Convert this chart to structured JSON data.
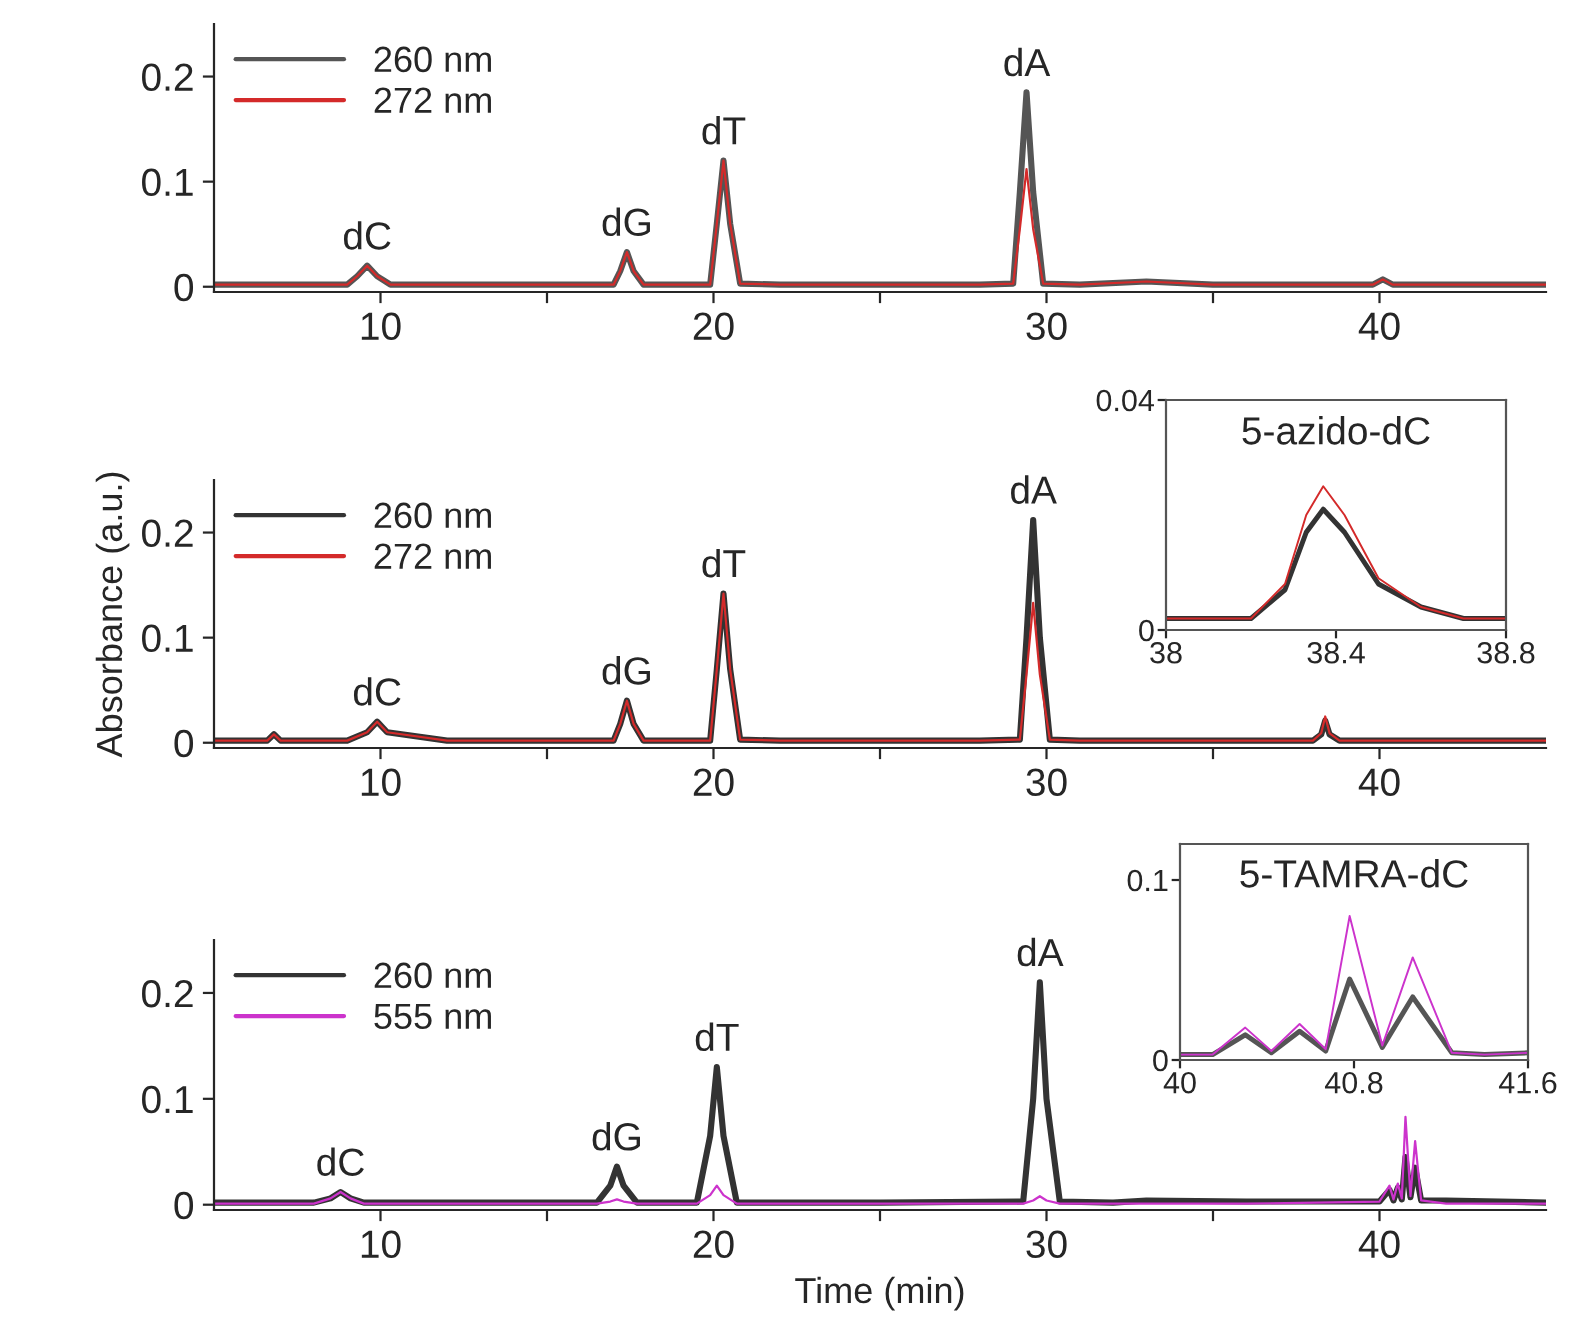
{
  "chart_data": [
    {
      "type": "line",
      "xlim": [
        5,
        45
      ],
      "ylim": [
        -0.005,
        0.25
      ],
      "xticks": [
        10,
        {
          "value": 15,
          "label": null
        },
        20,
        {
          "value": 25,
          "label": null
        },
        30,
        {
          "value": 35,
          "label": null
        },
        40
      ],
      "yticks": [
        0,
        0.1,
        0.2
      ],
      "legend": "top left",
      "grid": false,
      "annotations": [
        {
          "text": "dC",
          "x": 9.6,
          "y": 0.02
        },
        {
          "text": "dG",
          "x": 17.4,
          "y": 0.033
        },
        {
          "text": "dT",
          "x": 20.3,
          "y": 0.12
        },
        {
          "text": "dA",
          "x": 29.4,
          "y": 0.185
        }
      ],
      "series": [
        {
          "name": "260 nm",
          "color": "#555555",
          "x": [
            5,
            7,
            9,
            9.3,
            9.6,
            9.9,
            10.3,
            12,
            15,
            17,
            17.2,
            17.4,
            17.6,
            17.9,
            19,
            19.9,
            20.1,
            20.3,
            20.5,
            20.8,
            22,
            25,
            28,
            29.0,
            29.2,
            29.4,
            29.6,
            29.9,
            31,
            33,
            35,
            39.8,
            40.1,
            40.4,
            42,
            45
          ],
          "values": [
            0.002,
            0.002,
            0.002,
            0.01,
            0.02,
            0.01,
            0.002,
            0.002,
            0.002,
            0.002,
            0.015,
            0.033,
            0.015,
            0.002,
            0.002,
            0.002,
            0.06,
            0.12,
            0.06,
            0.003,
            0.002,
            0.002,
            0.002,
            0.003,
            0.09,
            0.185,
            0.09,
            0.003,
            0.002,
            0.005,
            0.002,
            0.002,
            0.007,
            0.002,
            0.002,
            0.002
          ]
        },
        {
          "name": "272 nm",
          "color": "#d42a2a",
          "x": [
            5,
            7,
            9,
            9.3,
            9.6,
            9.9,
            10.3,
            12,
            15,
            17,
            17.2,
            17.4,
            17.6,
            17.9,
            19,
            19.9,
            20.1,
            20.3,
            20.5,
            20.8,
            22,
            25,
            28,
            29.0,
            29.2,
            29.4,
            29.6,
            29.9,
            31,
            33,
            35,
            39.8,
            40.1,
            40.4,
            42,
            45
          ],
          "values": [
            0.002,
            0.002,
            0.002,
            0.01,
            0.02,
            0.01,
            0.002,
            0.002,
            0.002,
            0.002,
            0.015,
            0.033,
            0.015,
            0.002,
            0.002,
            0.002,
            0.06,
            0.12,
            0.06,
            0.003,
            0.002,
            0.002,
            0.002,
            0.003,
            0.055,
            0.112,
            0.055,
            0.003,
            0.002,
            0.005,
            0.002,
            0.002,
            0.007,
            0.002,
            0.002,
            0.002
          ]
        }
      ]
    },
    {
      "type": "line",
      "xlim": [
        5,
        45
      ],
      "ylim": [
        -0.005,
        0.25
      ],
      "xticks": [
        10,
        {
          "value": 15,
          "label": null
        },
        20,
        {
          "value": 25,
          "label": null
        },
        30,
        {
          "value": 35,
          "label": null
        },
        40
      ],
      "yticks": [
        0,
        0.1,
        0.2
      ],
      "legend": "top left",
      "grid": false,
      "ylabel": "Absorbance (a.u.)",
      "annotations": [
        {
          "text": "dC",
          "x": 9.9,
          "y": 0.02
        },
        {
          "text": "dG",
          "x": 17.4,
          "y": 0.04
        },
        {
          "text": "dT",
          "x": 20.3,
          "y": 0.142
        },
        {
          "text": "dA",
          "x": 29.6,
          "y": 0.212
        }
      ],
      "series": [
        {
          "name": "260 nm",
          "color": "#333333",
          "x": [
            5,
            6.6,
            6.8,
            7,
            9,
            9.6,
            9.9,
            10.2,
            12,
            15,
            17,
            17.2,
            17.4,
            17.6,
            17.9,
            19,
            19.9,
            20.1,
            20.3,
            20.5,
            20.8,
            22,
            25,
            28,
            29.2,
            29.4,
            29.6,
            29.8,
            30.1,
            31,
            35,
            38,
            38.25,
            38.37,
            38.5,
            38.8,
            42,
            45
          ],
          "values": [
            0.002,
            0.002,
            0.008,
            0.002,
            0.002,
            0.01,
            0.02,
            0.01,
            0.002,
            0.002,
            0.002,
            0.018,
            0.04,
            0.018,
            0.002,
            0.002,
            0.002,
            0.07,
            0.142,
            0.07,
            0.003,
            0.002,
            0.002,
            0.002,
            0.003,
            0.1,
            0.212,
            0.1,
            0.003,
            0.002,
            0.002,
            0.002,
            0.008,
            0.021,
            0.008,
            0.002,
            0.002,
            0.002
          ]
        },
        {
          "name": "272 nm",
          "color": "#d42a2a",
          "x": [
            5,
            6.6,
            6.8,
            7,
            9,
            9.6,
            9.9,
            10.2,
            12,
            15,
            17,
            17.2,
            17.4,
            17.6,
            17.9,
            19,
            19.9,
            20.1,
            20.3,
            20.5,
            20.8,
            22,
            25,
            28,
            29.2,
            29.4,
            29.6,
            29.8,
            30.1,
            31,
            35,
            38,
            38.25,
            38.37,
            38.5,
            38.8,
            42,
            45
          ],
          "values": [
            0.002,
            0.002,
            0.008,
            0.002,
            0.002,
            0.01,
            0.02,
            0.01,
            0.002,
            0.002,
            0.002,
            0.018,
            0.04,
            0.018,
            0.002,
            0.002,
            0.002,
            0.07,
            0.142,
            0.07,
            0.003,
            0.002,
            0.002,
            0.002,
            0.003,
            0.065,
            0.133,
            0.065,
            0.003,
            0.002,
            0.002,
            0.002,
            0.009,
            0.025,
            0.009,
            0.002,
            0.002,
            0.002
          ]
        }
      ]
    },
    {
      "type": "line",
      "xlim": [
        5,
        45
      ],
      "ylim": [
        -0.005,
        0.25
      ],
      "xticks": [
        10,
        {
          "value": 15,
          "label": null
        },
        20,
        {
          "value": 25,
          "label": null
        },
        30,
        {
          "value": 35,
          "label": null
        },
        40
      ],
      "yticks": [
        0,
        0.1,
        0.2
      ],
      "legend": "top left",
      "grid": false,
      "xlabel": "Time (min)",
      "annotations": [
        {
          "text": "dC",
          "x": 8.8,
          "y": 0.012
        },
        {
          "text": "dG",
          "x": 17.1,
          "y": 0.036
        },
        {
          "text": "dT",
          "x": 20.1,
          "y": 0.13
        },
        {
          "text": "dA",
          "x": 29.8,
          "y": 0.21
        }
      ],
      "series": [
        {
          "name": "260 nm",
          "color": "#333333",
          "x": [
            5,
            8,
            8.5,
            8.8,
            9.1,
            9.5,
            12,
            16.5,
            16.9,
            17.1,
            17.3,
            17.7,
            19.5,
            19.9,
            20.1,
            20.3,
            20.7,
            25,
            29.3,
            29.6,
            29.8,
            30,
            30.4,
            32,
            33,
            36,
            40,
            40.3,
            40.42,
            40.55,
            40.67,
            40.78,
            40.93,
            41.07,
            41.25,
            42,
            45
          ],
          "values": [
            0.002,
            0.002,
            0.006,
            0.012,
            0.006,
            0.002,
            0.002,
            0.002,
            0.018,
            0.036,
            0.018,
            0.002,
            0.002,
            0.065,
            0.13,
            0.065,
            0.002,
            0.002,
            0.003,
            0.1,
            0.21,
            0.1,
            0.003,
            0.002,
            0.004,
            0.003,
            0.003,
            0.014,
            0.004,
            0.016,
            0.005,
            0.045,
            0.007,
            0.035,
            0.004,
            0.004,
            0.002
          ]
        },
        {
          "name": "555 nm",
          "color": "#cc33cc",
          "x": [
            5,
            8,
            8.5,
            8.8,
            9.1,
            9.5,
            12,
            16.5,
            16.9,
            17.1,
            17.3,
            17.7,
            19.5,
            19.9,
            20.1,
            20.3,
            20.7,
            25,
            29.3,
            29.6,
            29.8,
            30,
            30.4,
            32,
            33,
            36,
            40,
            40.3,
            40.42,
            40.55,
            40.67,
            40.78,
            40.93,
            41.07,
            41.25,
            42,
            45
          ],
          "values": [
            0.001,
            0.001,
            0.006,
            0.012,
            0.006,
            0.001,
            0.001,
            0.001,
            0.003,
            0.005,
            0.003,
            0.001,
            0.001,
            0.009,
            0.018,
            0.009,
            0.001,
            0.001,
            0.001,
            0.004,
            0.008,
            0.004,
            0.001,
            0.001,
            0.001,
            0.001,
            0.003,
            0.018,
            0.005,
            0.02,
            0.006,
            0.083,
            0.008,
            0.06,
            0.004,
            0.001,
            0.001
          ]
        }
      ]
    },
    {
      "type": "line",
      "title": "5-azido-dC",
      "xlim": [
        38,
        38.8
      ],
      "ylim": [
        0,
        0.04
      ],
      "xticks": [
        38,
        38.4,
        38.8
      ],
      "yticks": [
        0,
        0.04
      ],
      "grid": false,
      "series": [
        {
          "color": "#333333",
          "x": [
            38,
            38.2,
            38.28,
            38.33,
            38.37,
            38.42,
            38.5,
            38.6,
            38.7,
            38.8
          ],
          "values": [
            0.002,
            0.002,
            0.007,
            0.017,
            0.021,
            0.017,
            0.008,
            0.004,
            0.002,
            0.002
          ]
        },
        {
          "color": "#d42a2a",
          "x": [
            38,
            38.2,
            38.28,
            38.33,
            38.37,
            38.42,
            38.5,
            38.6,
            38.7,
            38.8
          ],
          "values": [
            0.002,
            0.002,
            0.008,
            0.02,
            0.025,
            0.02,
            0.009,
            0.004,
            0.002,
            0.002
          ]
        }
      ]
    },
    {
      "type": "line",
      "title": "5-TAMRA-dC",
      "xlim": [
        40,
        41.6
      ],
      "ylim": [
        0,
        0.12
      ],
      "xticks": [
        40,
        40.8,
        41.6
      ],
      "yticks": [
        0,
        0.1
      ],
      "grid": false,
      "series": [
        {
          "color": "#555555",
          "x": [
            40,
            40.15,
            40.3,
            40.42,
            40.55,
            40.67,
            40.78,
            40.93,
            41.07,
            41.25,
            41.4,
            41.6
          ],
          "values": [
            0.003,
            0.003,
            0.014,
            0.004,
            0.016,
            0.005,
            0.045,
            0.007,
            0.035,
            0.004,
            0.003,
            0.004
          ]
        },
        {
          "color": "#cc33cc",
          "x": [
            40,
            40.15,
            40.3,
            40.42,
            40.55,
            40.67,
            40.78,
            40.93,
            41.07,
            41.25,
            41.4,
            41.6
          ],
          "values": [
            0.003,
            0.003,
            0.018,
            0.005,
            0.02,
            0.006,
            0.08,
            0.008,
            0.057,
            0.004,
            0.003,
            0.004
          ]
        }
      ]
    }
  ]
}
